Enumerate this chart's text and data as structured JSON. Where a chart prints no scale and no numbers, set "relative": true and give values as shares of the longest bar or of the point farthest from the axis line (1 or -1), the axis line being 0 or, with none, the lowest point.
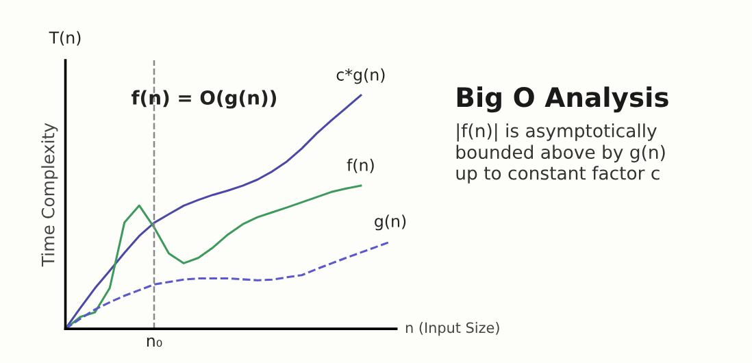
{
  "chart_data": {
    "type": "line",
    "relative": true,
    "title": "Big O Analysis",
    "subtitle": "|f(n)| is asymptotically\nbounded above by g(n)\nup to constant factor c",
    "xlabel": "n (Input Size)",
    "ylabel": "Time Complexity",
    "annotations": [
      "T(n)",
      "f(n) = O(g(n))",
      "n₀"
    ],
    "categories": [
      null,
      null,
      null,
      null,
      null,
      null,
      null,
      null,
      null,
      null,
      null,
      null,
      null,
      null,
      null,
      null,
      null,
      null,
      null,
      null,
      null,
      null,
      null
    ],
    "legend": false,
    "marker": "none",
    "series": [
      {
        "name": "c*g(n)",
        "color": "#4b48a6",
        "line_style": "solid",
        "values": [
          0,
          0.089,
          0.174,
          0.249,
          0.326,
          0.398,
          0.454,
          0.491,
          0.527,
          0.552,
          0.574,
          0.592,
          0.613,
          0.639,
          0.674,
          0.717,
          0.772,
          0.836,
          0.892,
          0.946,
          1.0,
          null,
          null
        ]
      },
      {
        "name": "f(n)",
        "color": "#3e9a5c",
        "line_style": "solid",
        "values": [
          0,
          0.051,
          0.071,
          0.175,
          0.456,
          0.528,
          0.435,
          0.323,
          0.281,
          0.304,
          0.349,
          0.404,
          0.448,
          0.478,
          0.499,
          0.52,
          0.542,
          0.564,
          0.586,
          0.601,
          0.613,
          null,
          null
        ]
      },
      {
        "name": "g(n)",
        "color": "#5a58cc",
        "line_style": "dashed",
        "values": [
          0,
          0.043,
          0.083,
          0.114,
          0.142,
          0.166,
          0.19,
          0.201,
          0.211,
          0.216,
          0.216,
          0.216,
          0.212,
          0.208,
          0.211,
          0.221,
          0.23,
          0.256,
          0.28,
          0.304,
          0.327,
          0.35,
          0.373
        ]
      }
    ]
  }
}
